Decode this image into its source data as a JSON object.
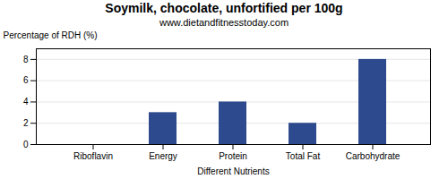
{
  "chart_data": {
    "type": "bar",
    "title": "Soymilk, chocolate, unfortified per 100g",
    "subtitle": "www.dietandfitnesstoday.com",
    "xlabel": "Different Nutrients",
    "ylabel": "Percentage of RDH (%)",
    "categories": [
      "Riboflavin",
      "Energy",
      "Protein",
      "Total Fat",
      "Carbohydrate"
    ],
    "values": [
      0,
      3,
      4,
      2,
      8
    ],
    "color": "#2e4a8e",
    "ylim": [
      0,
      9
    ],
    "yticks": [
      0,
      2,
      4,
      6,
      8
    ],
    "grid": true
  }
}
